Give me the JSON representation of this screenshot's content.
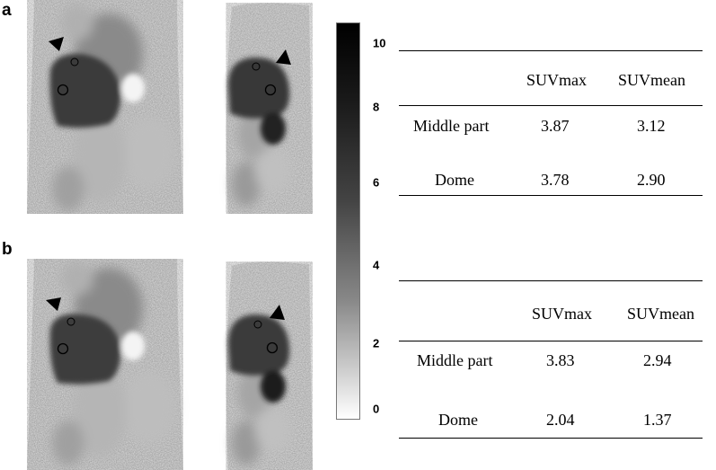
{
  "panels": [
    {
      "label": "a",
      "table": {
        "headers": [
          "",
          "SUVmax",
          "SUVmean"
        ],
        "rows": [
          {
            "region": "Middle part",
            "suvmax": "3.87",
            "suvmean": "3.12"
          },
          {
            "region": "Dome",
            "suvmax": "3.78",
            "suvmean": "2.90"
          }
        ]
      }
    },
    {
      "label": "b",
      "table": {
        "headers": [
          "",
          "SUVmax",
          "SUVmean"
        ],
        "rows": [
          {
            "region": "Middle part",
            "suvmax": "3.83",
            "suvmean": "2.94"
          },
          {
            "region": "Dome",
            "suvmax": "2.04",
            "suvmean": "1.37"
          }
        ]
      }
    }
  ],
  "colorbar": {
    "ticks": [
      "10",
      "8",
      "6",
      "4",
      "2",
      "0"
    ],
    "range": [
      0,
      10
    ],
    "colors": {
      "max": "#000000",
      "min": "#ffffff"
    }
  },
  "images": [
    {
      "panel": "a",
      "view": "coronal",
      "markers": [
        "arrowhead",
        "roi-circle-dome",
        "roi-circle-middle"
      ]
    },
    {
      "panel": "a",
      "view": "sagittal",
      "markers": [
        "arrowhead",
        "roi-circle-dome",
        "roi-circle-middle"
      ]
    },
    {
      "panel": "b",
      "view": "coronal",
      "markers": [
        "arrowhead",
        "roi-circle-dome",
        "roi-circle-middle"
      ]
    },
    {
      "panel": "b",
      "view": "sagittal",
      "markers": [
        "arrowhead",
        "roi-circle-dome",
        "roi-circle-middle"
      ]
    }
  ]
}
